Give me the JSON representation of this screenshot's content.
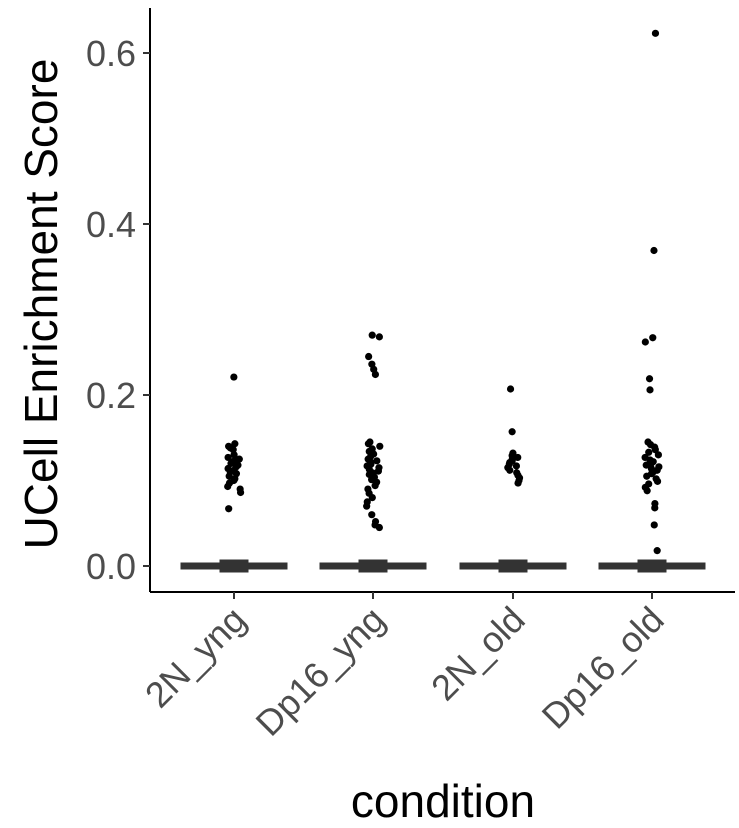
{
  "chart_data": {
    "type": "box",
    "title": "",
    "xlabel": "condition",
    "ylabel": "UCell Enrichment Score",
    "categories": [
      "2N_yng",
      "Dp16_yng",
      "2N_old",
      "Dp16_old"
    ],
    "ylim": [
      -0.03,
      0.65
    ],
    "yticks": [
      0.0,
      0.2,
      0.4,
      0.6
    ],
    "ytick_labels": [
      "0.0",
      "0.2",
      "0.4",
      "0.6"
    ],
    "grid": false,
    "legend": "none",
    "colors": {
      "axis": "#000000",
      "tick_text": "#4d4d4d",
      "box": "#333333",
      "point": "#000000"
    },
    "boxes": [
      {
        "category": "2N_yng",
        "min": 0.0,
        "q1": 0.0,
        "median": 0.0,
        "q3": 0.0,
        "max": 0.0
      },
      {
        "category": "Dp16_yng",
        "min": 0.0,
        "q1": 0.0,
        "median": 0.0,
        "q3": 0.0,
        "max": 0.0
      },
      {
        "category": "2N_old",
        "min": 0.0,
        "q1": 0.0,
        "median": 0.0,
        "q3": 0.0,
        "max": 0.0
      },
      {
        "category": "Dp16_old",
        "min": 0.0,
        "q1": 0.0,
        "median": 0.0,
        "q3": 0.0,
        "max": 0.0
      }
    ],
    "outliers": [
      {
        "category": "2N_yng",
        "values": [
          0.221,
          0.143,
          0.14,
          0.138,
          0.136,
          0.13,
          0.127,
          0.125,
          0.124,
          0.122,
          0.12,
          0.118,
          0.116,
          0.114,
          0.112,
          0.11,
          0.108,
          0.105,
          0.102,
          0.1,
          0.097,
          0.093,
          0.09,
          0.086,
          0.067
        ]
      },
      {
        "category": "Dp16_yng",
        "values": [
          0.27,
          0.268,
          0.245,
          0.236,
          0.23,
          0.224,
          0.145,
          0.143,
          0.14,
          0.137,
          0.134,
          0.131,
          0.128,
          0.125,
          0.123,
          0.121,
          0.119,
          0.117,
          0.115,
          0.113,
          0.111,
          0.109,
          0.107,
          0.104,
          0.101,
          0.098,
          0.094,
          0.09,
          0.085,
          0.08,
          0.075,
          0.07,
          0.06,
          0.052,
          0.048,
          0.045
        ]
      },
      {
        "category": "2N_old",
        "values": [
          0.207,
          0.157,
          0.132,
          0.129,
          0.127,
          0.125,
          0.123,
          0.121,
          0.119,
          0.117,
          0.115,
          0.112,
          0.109,
          0.106,
          0.103,
          0.1,
          0.097
        ]
      },
      {
        "category": "Dp16_old",
        "values": [
          0.623,
          0.369,
          0.267,
          0.262,
          0.219,
          0.206,
          0.145,
          0.142,
          0.139,
          0.136,
          0.133,
          0.13,
          0.127,
          0.124,
          0.122,
          0.12,
          0.118,
          0.116,
          0.114,
          0.112,
          0.11,
          0.108,
          0.105,
          0.102,
          0.099,
          0.096,
          0.092,
          0.088,
          0.073,
          0.068,
          0.048,
          0.018
        ]
      }
    ]
  }
}
